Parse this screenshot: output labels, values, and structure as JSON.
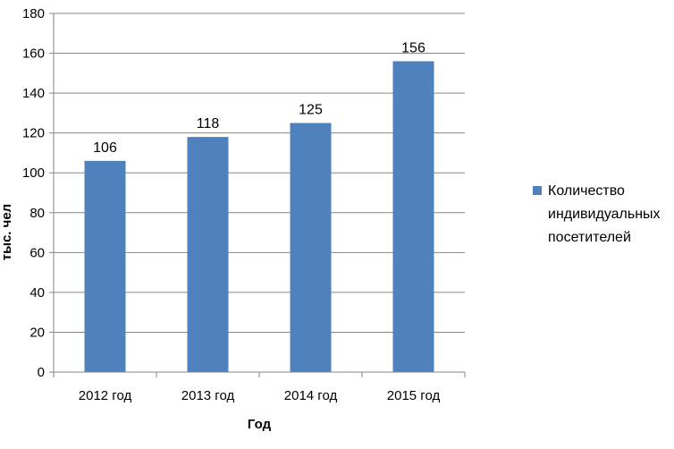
{
  "chart_data": {
    "type": "bar",
    "categories": [
      "2012 год",
      "2013 год",
      "2014 год",
      "2015 год"
    ],
    "series": [
      {
        "name": "Количество индивидуальных посетителей",
        "values": [
          106,
          118,
          125,
          156
        ]
      }
    ],
    "title": "",
    "xlabel": "Год",
    "ylabel": "тыс. чел",
    "ylim": [
      0,
      180
    ],
    "yticks": [
      0,
      20,
      40,
      60,
      80,
      100,
      120,
      140,
      160,
      180
    ],
    "ytick_labels": [
      "0",
      "20",
      "40",
      "60",
      "80",
      "100",
      "120",
      "140",
      "160",
      "180"
    ],
    "data_labels": [
      "106",
      "118",
      "125",
      "156"
    ],
    "grid": true,
    "legend_position": "right",
    "legend_lines": [
      "Количество",
      "индивидуальных",
      "посетителей"
    ],
    "colors": {
      "bar": "#4f81bd",
      "grid": "#868686",
      "axis": "#868686"
    }
  }
}
